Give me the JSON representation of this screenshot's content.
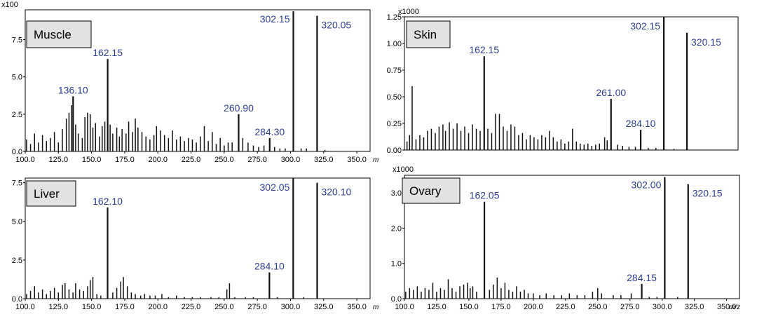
{
  "colors": {
    "peak": "#111111",
    "label": "#2e3f94",
    "box_fill": "#e2e2e2",
    "frame": "#000000"
  },
  "chart_data": [
    {
      "type": "bar",
      "title": "Muscle",
      "multiplier": "x100",
      "xlim": [
        100,
        360
      ],
      "ylim": [
        0,
        9.5
      ],
      "x_ticks": [
        "100.0",
        "125.0",
        "150.0",
        "175.0",
        "200.0",
        "225.0",
        "250.0",
        "275.0",
        "300.0",
        "325.0",
        "350.0"
      ],
      "y_ticks": [
        "0.0",
        "2.5",
        "5.0",
        "7.5"
      ],
      "x_unit": "m",
      "peaks": [
        {
          "x": 136.1,
          "y": 3.7,
          "label": "136.10"
        },
        {
          "x": 162.15,
          "y": 6.2,
          "label": "162.15"
        },
        {
          "x": 260.9,
          "y": 2.5,
          "label": "260.90"
        },
        {
          "x": 284.3,
          "y": 0.9,
          "label": "284.30"
        },
        {
          "x": 302.15,
          "y": 9.4,
          "label": "302.15"
        },
        {
          "x": 320.05,
          "y": 9.1,
          "label": "320.05"
        }
      ],
      "noise": [
        [
          101,
          0.8
        ],
        [
          104,
          0.5
        ],
        [
          107,
          1.2
        ],
        [
          110,
          0.6
        ],
        [
          113,
          1.1
        ],
        [
          116,
          0.7
        ],
        [
          119,
          0.9
        ],
        [
          122,
          1.3
        ],
        [
          125,
          0.6
        ],
        [
          128,
          1.5
        ],
        [
          131,
          2.2
        ],
        [
          133,
          2.6
        ],
        [
          135,
          3.1
        ],
        [
          138,
          1.8
        ],
        [
          140,
          1.2
        ],
        [
          143,
          0.9
        ],
        [
          145,
          2.3
        ],
        [
          147,
          2.6
        ],
        [
          149,
          2.5
        ],
        [
          151,
          1.6
        ],
        [
          153,
          1.9
        ],
        [
          156,
          1.0
        ],
        [
          158,
          1.7
        ],
        [
          160,
          2.0
        ],
        [
          164,
          1.8
        ],
        [
          166,
          1.2
        ],
        [
          169,
          1.6
        ],
        [
          171,
          1.0
        ],
        [
          173,
          1.5
        ],
        [
          176,
          1.2
        ],
        [
          178,
          2.0
        ],
        [
          181,
          1.3
        ],
        [
          183,
          2.2
        ],
        [
          185,
          1.6
        ],
        [
          188,
          1.3
        ],
        [
          191,
          1.0
        ],
        [
          194,
          0.8
        ],
        [
          197,
          1.1
        ],
        [
          199,
          1.7
        ],
        [
          202,
          1.4
        ],
        [
          205,
          1.1
        ],
        [
          208,
          0.9
        ],
        [
          211,
          1.4
        ],
        [
          214,
          0.8
        ],
        [
          217,
          1.0
        ],
        [
          220,
          0.7
        ],
        [
          223,
          0.9
        ],
        [
          226,
          0.8
        ],
        [
          229,
          0.6
        ],
        [
          232,
          1.0
        ],
        [
          235,
          1.7
        ],
        [
          238,
          0.7
        ],
        [
          241,
          1.3
        ],
        [
          244,
          0.5
        ],
        [
          247,
          0.9
        ],
        [
          250,
          0.4
        ],
        [
          253,
          0.6
        ],
        [
          256,
          0.6
        ],
        [
          264,
          0.9
        ],
        [
          268,
          0.6
        ],
        [
          272,
          0.4
        ],
        [
          276,
          0.3
        ],
        [
          280,
          0.4
        ],
        [
          288,
          0.3
        ],
        [
          292,
          0.2
        ],
        [
          296,
          0.2
        ],
        [
          308,
          0.2
        ],
        [
          312,
          0.2
        ],
        [
          326,
          0.1
        ]
      ]
    },
    {
      "type": "bar",
      "title": "Skin",
      "multiplier": "x1000",
      "xlim": [
        100,
        360
      ],
      "ylim": [
        0,
        1.25
      ],
      "x_ticks": [],
      "y_ticks": [
        "0.00",
        "0.25",
        "0.50",
        "0.75",
        "1.00",
        "1.25"
      ],
      "x_unit": "",
      "peaks": [
        {
          "x": 162.15,
          "y": 0.88,
          "label": "162.15"
        },
        {
          "x": 261.0,
          "y": 0.48,
          "label": "261.00"
        },
        {
          "x": 284.1,
          "y": 0.19,
          "label": "284.10"
        },
        {
          "x": 302.15,
          "y": 1.25,
          "label": "302.15"
        },
        {
          "x": 320.15,
          "y": 1.1,
          "label": "320.15"
        }
      ],
      "noise": [
        [
          102,
          0.08
        ],
        [
          104,
          0.14
        ],
        [
          106,
          0.6
        ],
        [
          109,
          0.1
        ],
        [
          112,
          0.14
        ],
        [
          115,
          0.12
        ],
        [
          118,
          0.18
        ],
        [
          121,
          0.2
        ],
        [
          124,
          0.16
        ],
        [
          127,
          0.22
        ],
        [
          130,
          0.24
        ],
        [
          132,
          0.18
        ],
        [
          135,
          0.26
        ],
        [
          138,
          0.2
        ],
        [
          141,
          0.25
        ],
        [
          144,
          0.18
        ],
        [
          147,
          0.22
        ],
        [
          150,
          0.16
        ],
        [
          153,
          0.24
        ],
        [
          156,
          0.2
        ],
        [
          159,
          0.18
        ],
        [
          165,
          0.2
        ],
        [
          168,
          0.16
        ],
        [
          171,
          0.34
        ],
        [
          174,
          0.34
        ],
        [
          177,
          0.22
        ],
        [
          180,
          0.18
        ],
        [
          183,
          0.24
        ],
        [
          186,
          0.22
        ],
        [
          189,
          0.14
        ],
        [
          192,
          0.16
        ],
        [
          195,
          0.1
        ],
        [
          198,
          0.14
        ],
        [
          201,
          0.12
        ],
        [
          204,
          0.1
        ],
        [
          207,
          0.14
        ],
        [
          210,
          0.12
        ],
        [
          213,
          0.18
        ],
        [
          216,
          0.12
        ],
        [
          219,
          0.08
        ],
        [
          222,
          0.1
        ],
        [
          225,
          0.06
        ],
        [
          228,
          0.08
        ],
        [
          231,
          0.2
        ],
        [
          234,
          0.08
        ],
        [
          237,
          0.06
        ],
        [
          240,
          0.05
        ],
        [
          243,
          0.06
        ],
        [
          246,
          0.04
        ],
        [
          249,
          0.05
        ],
        [
          252,
          0.06
        ],
        [
          256,
          0.12
        ],
        [
          258,
          0.09
        ],
        [
          266,
          0.05
        ],
        [
          270,
          0.04
        ],
        [
          275,
          0.03
        ],
        [
          280,
          0.03
        ],
        [
          290,
          0.02
        ],
        [
          296,
          0.02
        ],
        [
          310,
          0.01
        ]
      ]
    },
    {
      "type": "bar",
      "title": "Liver",
      "multiplier": "",
      "xlim": [
        100,
        360
      ],
      "ylim": [
        0,
        7.8
      ],
      "x_ticks": [
        "100.0",
        "125.0",
        "150.0",
        "175.0",
        "200.0",
        "225.0",
        "250.0",
        "275.0",
        "300.0",
        "325.0",
        "350.0"
      ],
      "y_ticks": [
        "0.0",
        "2.5",
        "5.0",
        "7.5"
      ],
      "x_unit": "m",
      "peaks": [
        {
          "x": 162.1,
          "y": 5.9,
          "label": "162.10"
        },
        {
          "x": 284.1,
          "y": 1.7,
          "label": "284.10"
        },
        {
          "x": 302.05,
          "y": 7.8,
          "label": "302.05"
        },
        {
          "x": 320.1,
          "y": 7.5,
          "label": "320.10"
        }
      ],
      "noise": [
        [
          101,
          0.3
        ],
        [
          104,
          0.5
        ],
        [
          107,
          0.8
        ],
        [
          110,
          0.4
        ],
        [
          113,
          0.6
        ],
        [
          116,
          0.3
        ],
        [
          119,
          0.5
        ],
        [
          122,
          0.7
        ],
        [
          125,
          0.4
        ],
        [
          128,
          0.9
        ],
        [
          130,
          1.0
        ],
        [
          133,
          0.6
        ],
        [
          136,
          0.4
        ],
        [
          138,
          1.0
        ],
        [
          141,
          0.6
        ],
        [
          144,
          0.5
        ],
        [
          147,
          0.8
        ],
        [
          149,
          1.2
        ],
        [
          151,
          1.4
        ],
        [
          154,
          0.3
        ],
        [
          157,
          0.2
        ],
        [
          166,
          0.4
        ],
        [
          169,
          0.7
        ],
        [
          172,
          1.1
        ],
        [
          174,
          1.4
        ],
        [
          177,
          0.8
        ],
        [
          180,
          0.4
        ],
        [
          183,
          0.3
        ],
        [
          187,
          0.2
        ],
        [
          190,
          0.3
        ],
        [
          194,
          0.2
        ],
        [
          198,
          0.2
        ],
        [
          203,
          0.3
        ],
        [
          208,
          0.1
        ],
        [
          214,
          0.2
        ],
        [
          220,
          0.1
        ],
        [
          226,
          0.1
        ],
        [
          232,
          0.1
        ],
        [
          240,
          0.1
        ],
        [
          246,
          0.1
        ],
        [
          252,
          0.6
        ],
        [
          254,
          1.0
        ],
        [
          258,
          0.1
        ],
        [
          266,
          0.1
        ],
        [
          272,
          0.1
        ],
        [
          290,
          0.1
        ],
        [
          310,
          0.1
        ]
      ]
    },
    {
      "type": "bar",
      "title": "Ovary",
      "multiplier": "x1000",
      "xlim": [
        100,
        360
      ],
      "ylim": [
        0,
        3.5
      ],
      "x_ticks": [
        "100.0",
        "125.0",
        "150.0",
        "175.0",
        "200.0",
        "225.0",
        "250.0",
        "275.0",
        "300.0",
        "325.0",
        "350.0"
      ],
      "y_ticks": [
        "0.0",
        "1.0",
        "2.0",
        "3.0"
      ],
      "x_unit": "m/z",
      "peaks": [
        {
          "x": 162.05,
          "y": 2.75,
          "label": "162.05"
        },
        {
          "x": 284.15,
          "y": 0.42,
          "label": "284.15"
        },
        {
          "x": 302.0,
          "y": 3.45,
          "label": "302.00"
        },
        {
          "x": 320.15,
          "y": 3.25,
          "label": "320.15"
        }
      ],
      "noise": [
        [
          101,
          0.2
        ],
        [
          104,
          0.3
        ],
        [
          107,
          0.25
        ],
        [
          110,
          0.35
        ],
        [
          113,
          0.2
        ],
        [
          116,
          0.3
        ],
        [
          119,
          0.25
        ],
        [
          122,
          0.45
        ],
        [
          125,
          0.2
        ],
        [
          128,
          0.3
        ],
        [
          131,
          0.25
        ],
        [
          134,
          0.55
        ],
        [
          137,
          0.3
        ],
        [
          140,
          0.2
        ],
        [
          143,
          0.35
        ],
        [
          146,
          0.4
        ],
        [
          149,
          0.45
        ],
        [
          151,
          0.3
        ],
        [
          153,
          0.35
        ],
        [
          156,
          0.2
        ],
        [
          166,
          0.25
        ],
        [
          169,
          0.4
        ],
        [
          172,
          0.6
        ],
        [
          175,
          0.3
        ],
        [
          178,
          0.45
        ],
        [
          181,
          0.25
        ],
        [
          184,
          0.2
        ],
        [
          187,
          0.35
        ],
        [
          190,
          0.2
        ],
        [
          193,
          0.25
        ],
        [
          196,
          0.15
        ],
        [
          200,
          0.15
        ],
        [
          205,
          0.1
        ],
        [
          210,
          0.15
        ],
        [
          216,
          0.1
        ],
        [
          222,
          0.1
        ],
        [
          228,
          0.15
        ],
        [
          234,
          0.1
        ],
        [
          240,
          0.1
        ],
        [
          246,
          0.2
        ],
        [
          250,
          0.3
        ],
        [
          253,
          0.15
        ],
        [
          262,
          0.1
        ],
        [
          268,
          0.1
        ],
        [
          276,
          0.15
        ],
        [
          290,
          0.05
        ],
        [
          296,
          0.05
        ],
        [
          312,
          0.05
        ]
      ]
    }
  ]
}
